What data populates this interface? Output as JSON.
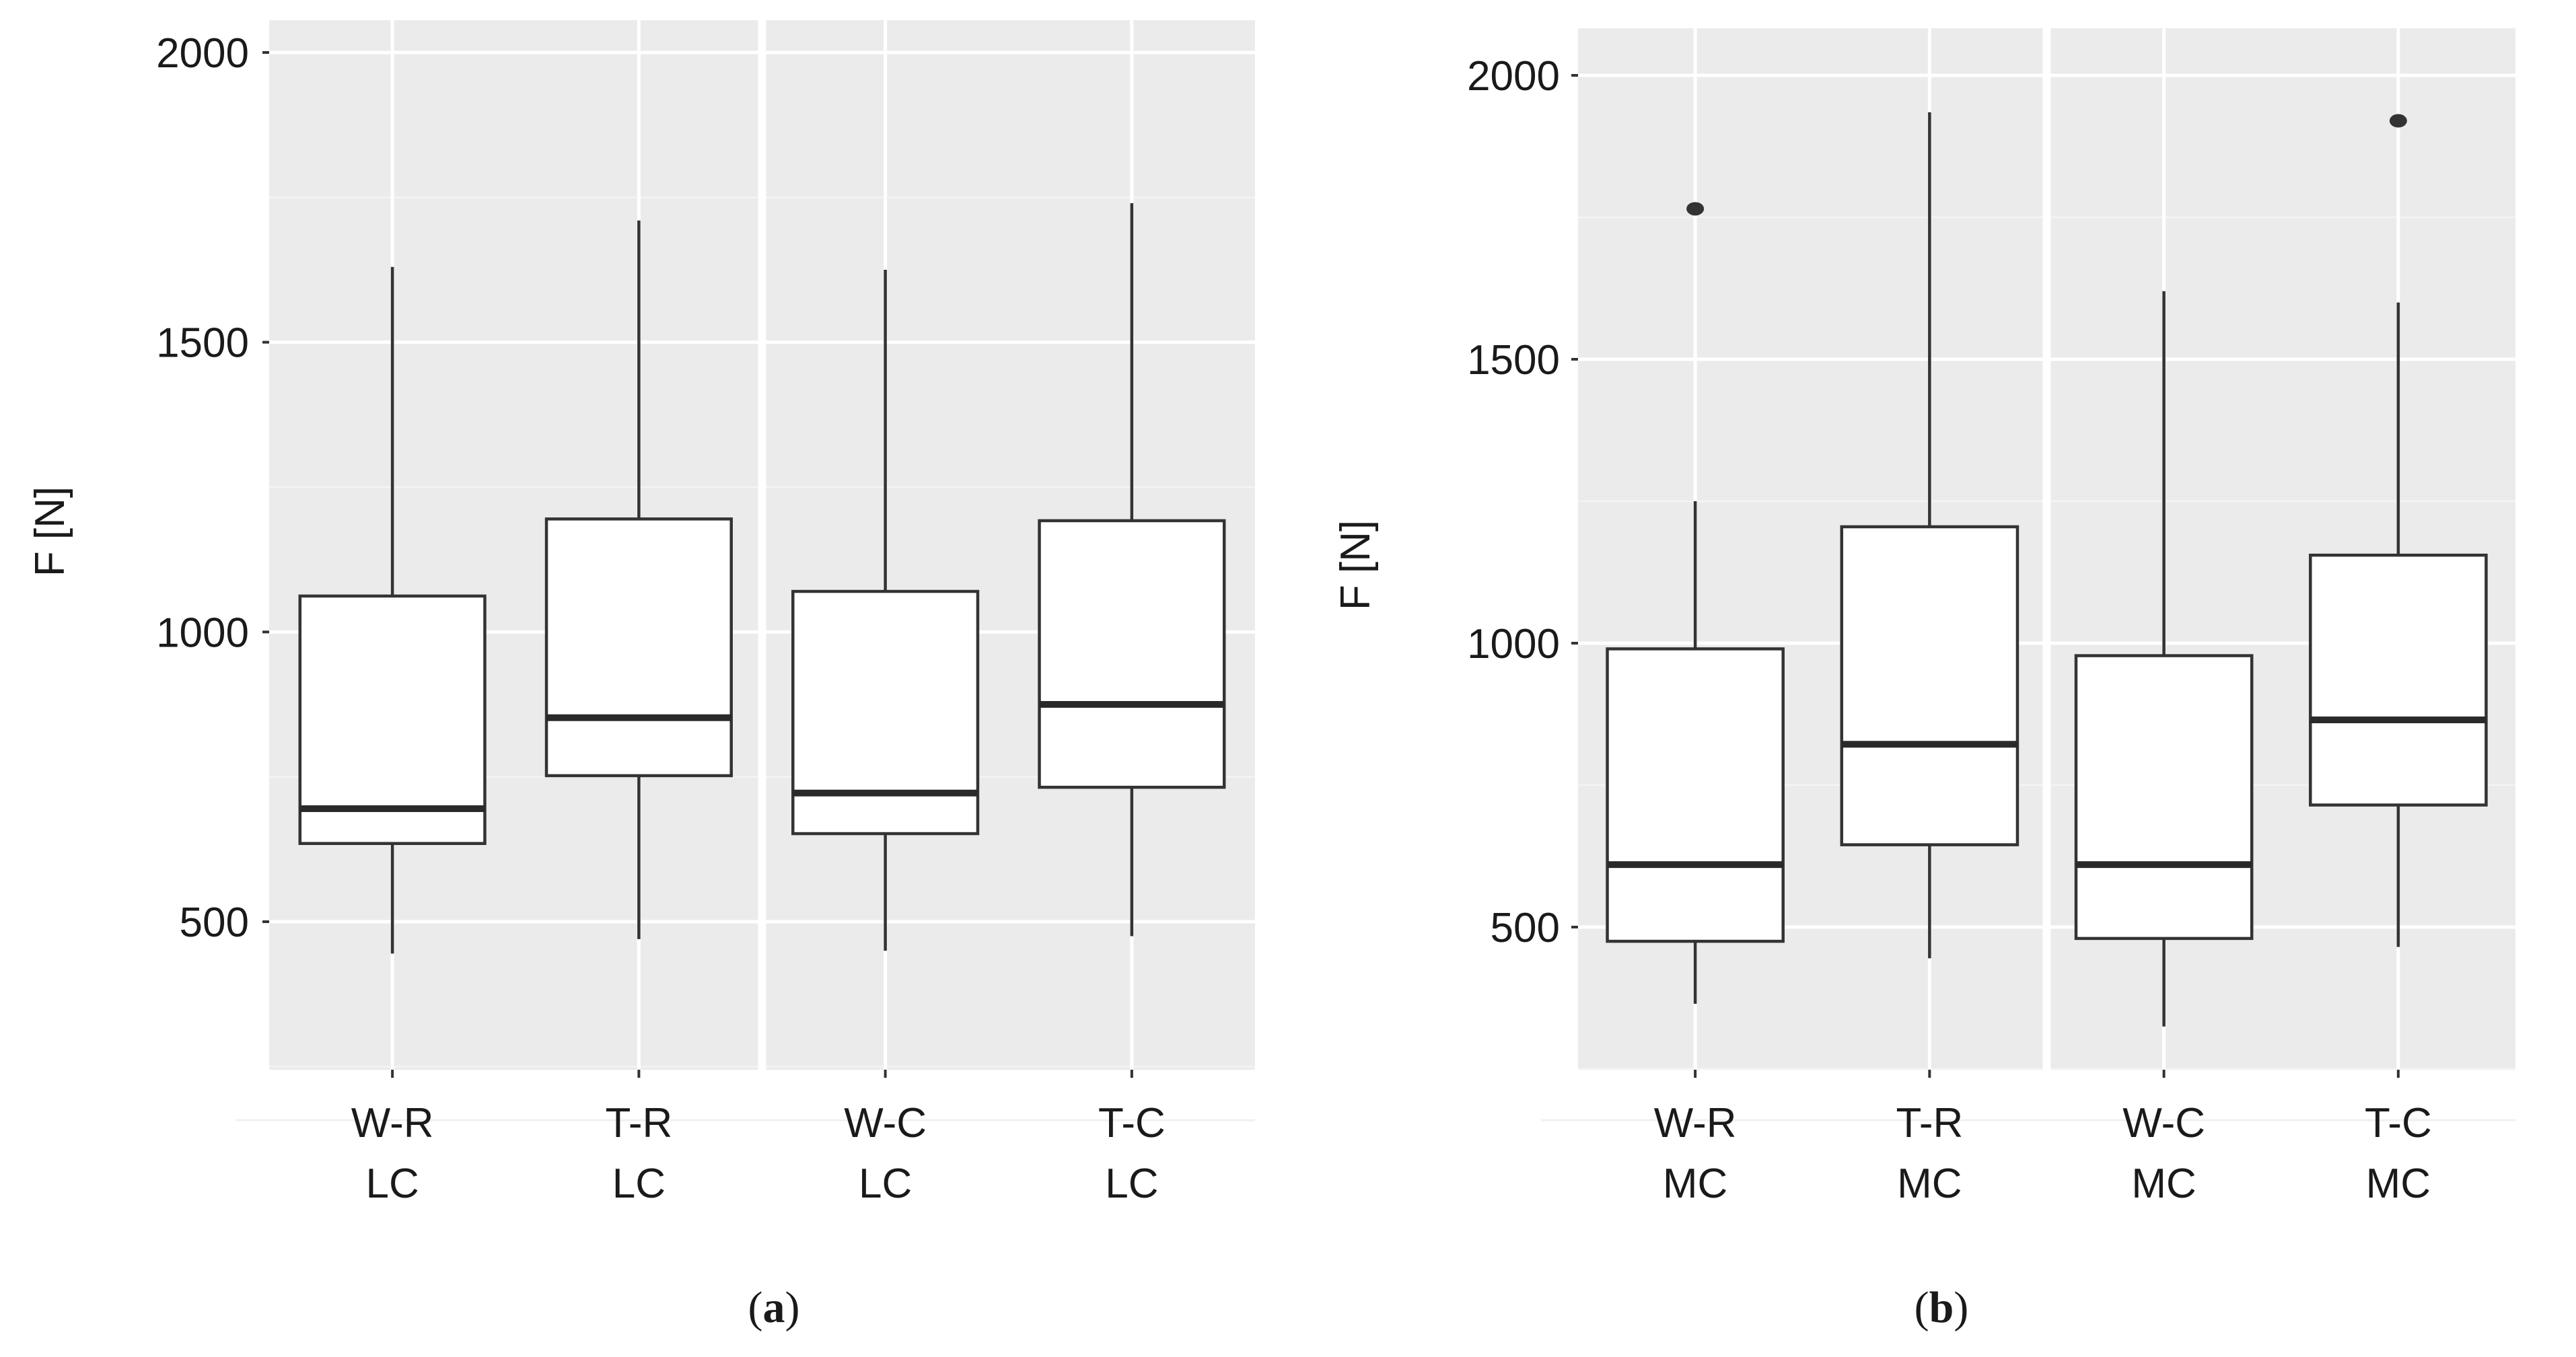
{
  "chart_data": [
    {
      "type": "box",
      "panel": "a",
      "caption_open": "(",
      "caption_letter": "a",
      "caption_close": ")",
      "title": "",
      "xlabel": "",
      "ylabel": "F [N]",
      "ylim": [
        250,
        2000
      ],
      "yticks": [
        500,
        1000,
        1500,
        2000
      ],
      "ytick_labels": [
        "500",
        "1000",
        "1500",
        "2000"
      ],
      "grid": true,
      "facet_divider_after": 2,
      "categories": [
        {
          "line1": "W-R",
          "line2": "LC",
          "min": 445,
          "q1": 635,
          "median": 695,
          "q3": 1062,
          "max": 1630,
          "outliers": []
        },
        {
          "line1": "T-R",
          "line2": "LC",
          "min": 470,
          "q1": 752,
          "median": 852,
          "q3": 1195,
          "max": 1710,
          "outliers": []
        },
        {
          "line1": "W-C",
          "line2": "LC",
          "min": 450,
          "q1": 652,
          "median": 722,
          "q3": 1070,
          "max": 1625,
          "outliers": []
        },
        {
          "line1": "T-C",
          "line2": "LC",
          "min": 475,
          "q1": 732,
          "median": 875,
          "q3": 1192,
          "max": 1740,
          "outliers": []
        }
      ]
    },
    {
      "type": "box",
      "panel": "b",
      "caption_open": "(",
      "caption_letter": "b",
      "caption_close": ")",
      "title": "",
      "xlabel": "",
      "ylabel": "F [N]",
      "ylim": [
        250,
        2000
      ],
      "yticks": [
        500,
        1000,
        1500,
        2000
      ],
      "ytick_labels": [
        "500",
        "1000",
        "1500",
        "2000"
      ],
      "grid": true,
      "facet_divider_after": 2,
      "categories": [
        {
          "line1": "W-R",
          "line2": "MC",
          "min": 365,
          "q1": 475,
          "median": 610,
          "q3": 990,
          "max": 1250,
          "outliers": [
            1765
          ]
        },
        {
          "line1": "T-R",
          "line2": "MC",
          "min": 445,
          "q1": 645,
          "median": 822,
          "q3": 1205,
          "max": 1935,
          "outliers": []
        },
        {
          "line1": "W-C",
          "line2": "MC",
          "min": 325,
          "q1": 480,
          "median": 610,
          "q3": 978,
          "max": 1620,
          "outliers": []
        },
        {
          "line1": "T-C",
          "line2": "MC",
          "min": 465,
          "q1": 715,
          "median": 865,
          "q3": 1155,
          "max": 1600,
          "outliers": [
            1920
          ]
        }
      ]
    }
  ]
}
